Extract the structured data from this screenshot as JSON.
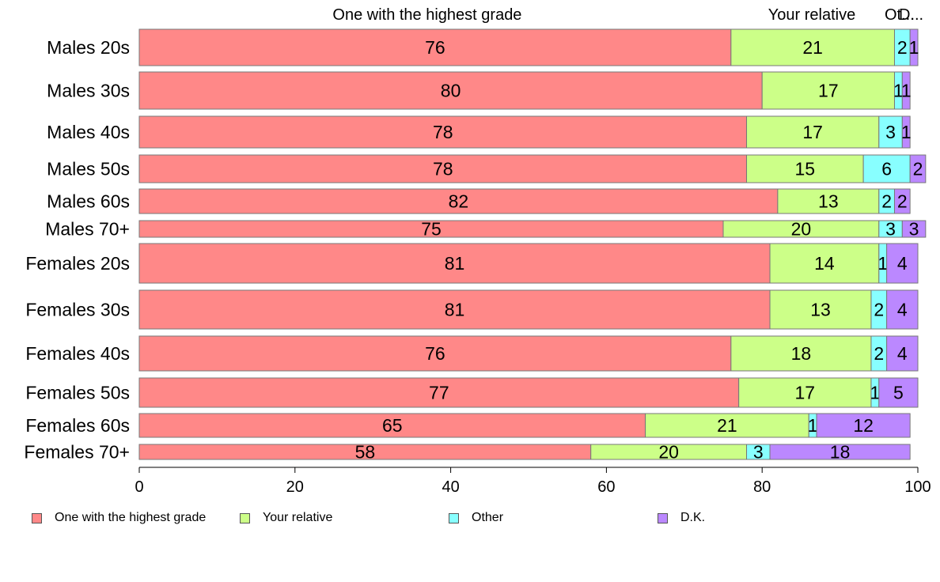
{
  "chart_data": {
    "type": "bar",
    "orientation": "horizontal",
    "stacked": true,
    "categories": [
      "Males 20s",
      "Males 30s",
      "Males 40s",
      "Males 50s",
      "Males 60s",
      "Males 70+",
      "Females 20s",
      "Females 30s",
      "Females 40s",
      "Females 50s",
      "Females 60s",
      "Females 70+"
    ],
    "series": [
      {
        "name": "One with the highest grade",
        "color": "#ff8888",
        "values": [
          76,
          80,
          78,
          78,
          82,
          75,
          81,
          81,
          76,
          77,
          65,
          58
        ]
      },
      {
        "name": "Your relative",
        "color": "#ccff88",
        "values": [
          21,
          17,
          17,
          15,
          13,
          20,
          14,
          13,
          18,
          17,
          21,
          20
        ]
      },
      {
        "name": "Other",
        "color": "#88ffff",
        "values": [
          2,
          1,
          3,
          6,
          2,
          3,
          1,
          2,
          2,
          1,
          1,
          3
        ]
      },
      {
        "name": "D.K.",
        "color": "#bb88ff",
        "values": [
          1,
          1,
          1,
          2,
          2,
          3,
          4,
          4,
          4,
          5,
          12,
          18
        ]
      }
    ],
    "top_labels": [
      "One with the highest grade",
      "Your relative",
      "Ot...",
      "D..."
    ],
    "xlim": [
      0,
      100
    ],
    "xticks": [
      "0",
      "20",
      "40",
      "60",
      "80",
      "100"
    ],
    "grid": false,
    "legend": "bottom"
  }
}
